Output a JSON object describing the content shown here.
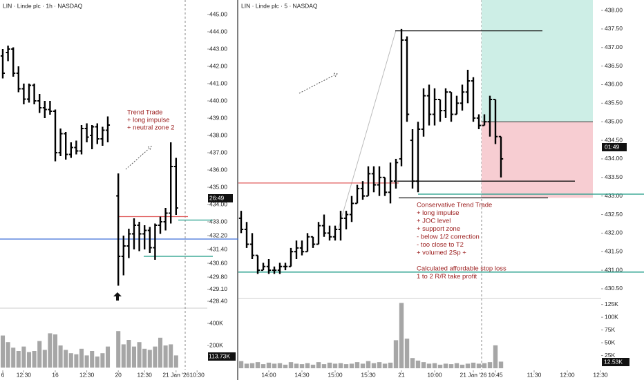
{
  "chart_data": [
    {
      "type": "ohlc",
      "title": "LIN · Linde plc · 1h · NASDAQ",
      "open": [
        442.6,
        442.8,
        443.0,
        441.6,
        440.7,
        440.1,
        440.9,
        440.0,
        439.6,
        439.5,
        439.4,
        437.0,
        438.1,
        436.9,
        437.3,
        437.1,
        438.4,
        438.0,
        438.5,
        437.8,
        438.3,
        null,
        434.5,
        431.0,
        431.6,
        432.3,
        432.8,
        432.3,
        432.5,
        431.5,
        432.8,
        433.0,
        433.5,
        436.2
      ],
      "high": [
        443.0,
        443.2,
        443.1,
        442.0,
        441.0,
        441.0,
        441.0,
        440.4,
        440.0,
        440.0,
        439.5,
        438.4,
        438.2,
        437.6,
        437.7,
        438.6,
        438.7,
        438.6,
        438.7,
        438.5,
        439.1,
        null,
        435.8,
        432.2,
        432.6,
        433.2,
        433.0,
        432.8,
        432.7,
        432.9,
        433.3,
        433.8,
        437.6,
        436.7
      ],
      "low": [
        441.3,
        442.3,
        441.4,
        440.5,
        439.8,
        439.9,
        439.8,
        439.3,
        439.0,
        439.2,
        436.5,
        436.8,
        436.6,
        436.7,
        436.9,
        436.9,
        437.6,
        437.2,
        437.5,
        437.4,
        437.6,
        null,
        429.3,
        429.9,
        430.9,
        431.4,
        431.3,
        431.4,
        431.2,
        430.8,
        432.3,
        432.5,
        432.9,
        433.4
      ],
      "close": [
        441.6,
        443.0,
        441.6,
        440.7,
        440.1,
        440.9,
        440.0,
        439.6,
        439.5,
        439.4,
        437.0,
        438.1,
        436.9,
        437.3,
        437.1,
        438.4,
        437.9,
        438.5,
        437.8,
        438.3,
        438.6,
        null,
        431.0,
        431.6,
        432.3,
        432.8,
        432.3,
        432.5,
        431.5,
        432.8,
        433.0,
        433.5,
        436.2,
        433.8
      ],
      "volume": [
        290000,
        230000,
        180000,
        150000,
        190000,
        140000,
        150000,
        240000,
        160000,
        310000,
        300000,
        200000,
        160000,
        130000,
        120000,
        170000,
        110000,
        150000,
        100000,
        130000,
        190000,
        null,
        330000,
        210000,
        250000,
        190000,
        230000,
        170000,
        160000,
        190000,
        270000,
        200000,
        210000,
        110000
      ],
      "ylim": [
        428.24,
        445.84
      ],
      "yticks": [
        {
          "value": 445,
          "label": "445.00"
        },
        {
          "value": 444,
          "label": "444.00"
        },
        {
          "value": 443,
          "label": "443.00"
        },
        {
          "value": 442,
          "label": "442.00"
        },
        {
          "value": 441,
          "label": "441.00"
        },
        {
          "value": 440,
          "label": "440.00"
        },
        {
          "value": 439,
          "label": "439.00"
        },
        {
          "value": 438,
          "label": "438.00"
        },
        {
          "value": 437,
          "label": "437.00"
        },
        {
          "value": 436,
          "label": "436.00"
        },
        {
          "value": 435,
          "label": "435.00"
        },
        {
          "value": 434,
          "label": "434.00"
        },
        {
          "value": 433,
          "label": "433.00"
        },
        {
          "value": 432.2,
          "label": "432.20"
        },
        {
          "value": 431.4,
          "label": "431.40"
        },
        {
          "value": 430.6,
          "label": "430.60"
        },
        {
          "value": 429.8,
          "label": "429.80"
        },
        {
          "value": 429.1,
          "label": "429.10"
        },
        {
          "value": 428.4,
          "label": "428.40"
        }
      ],
      "vlim": [
        0,
        500000
      ],
      "vticks": [
        {
          "value": 400000,
          "label": "400K"
        },
        {
          "value": 200000,
          "label": "200K"
        }
      ],
      "xticks": [
        {
          "value": 0,
          "label": "6"
        },
        {
          "value": 4,
          "label": "12:30"
        },
        {
          "value": 10,
          "label": "16"
        },
        {
          "value": 16,
          "label": "12:30"
        },
        {
          "value": 22,
          "label": "20"
        },
        {
          "value": 27,
          "label": "12:30"
        },
        {
          "value": 33,
          "label": "21 Jan '26"
        },
        {
          "value": 37,
          "label": "10:30"
        }
      ],
      "levels": [
        {
          "value": 432.0,
          "color": "#3f6fd8"
        },
        {
          "value": 433.3,
          "color": "#e05a5a"
        },
        {
          "value": 433.1,
          "color": "#1a9a85"
        },
        {
          "value": 431.0,
          "color": "#1a9a85"
        }
      ],
      "annotation": [
        "Trend Trade",
        "+ long impulse",
        "+ neutral zone 2"
      ],
      "countdown": "26:49",
      "volume_label": "113.73K"
    },
    {
      "type": "ohlc",
      "title": "LIN · Linde plc · 5 · NASDAQ",
      "open": [
        432.4,
        432.1,
        431.7,
        431.4,
        431.0,
        431.1,
        431.0,
        431.0,
        431.1,
        431.1,
        431.5,
        431.6,
        431.5,
        431.9,
        431.7,
        432.2,
        432.0,
        431.9,
        432.1,
        432.4,
        432.5,
        432.8,
        433.2,
        433.0,
        433.6,
        433.3,
        433.5,
        433.1,
        433.4,
        434.0,
        437.2,
        434.5,
        433.4,
        434.8,
        435.7,
        435.2,
        435.6,
        435.3,
        435.8,
        435.2,
        435.5,
        435.8,
        436.1,
        435.1,
        434.9,
        435.0,
        435.6,
        434.6
      ],
      "high": [
        432.6,
        432.3,
        432.0,
        431.4,
        431.2,
        431.3,
        431.1,
        431.2,
        431.2,
        431.6,
        431.8,
        431.8,
        432.0,
        431.9,
        432.3,
        432.5,
        432.2,
        432.2,
        432.6,
        432.6,
        433.0,
        433.3,
        433.4,
        433.8,
        433.8,
        433.8,
        433.5,
        433.9,
        434.0,
        437.5,
        437.3,
        434.8,
        435.0,
        435.9,
        436.0,
        435.9,
        435.6,
        435.9,
        435.8,
        435.7,
        436.0,
        436.4,
        436.2,
        435.2,
        435.2,
        435.7,
        435.6,
        434.6
      ],
      "low": [
        432.0,
        431.6,
        431.3,
        430.9,
        431.0,
        430.9,
        430.9,
        430.9,
        431.0,
        431.1,
        431.3,
        431.4,
        431.5,
        431.6,
        431.7,
        431.9,
        431.8,
        431.8,
        431.8,
        432.1,
        432.3,
        432.8,
        432.9,
        433.0,
        433.1,
        433.0,
        433.0,
        432.8,
        433.2,
        433.8,
        435.0,
        433.2,
        433.1,
        434.6,
        434.9,
        434.9,
        435.0,
        435.1,
        435.0,
        435.2,
        435.3,
        435.5,
        435.0,
        434.8,
        434.9,
        434.6,
        434.4,
        433.5
      ],
      "close": [
        432.1,
        431.7,
        431.4,
        431.0,
        431.1,
        431.0,
        431.0,
        431.1,
        431.1,
        431.5,
        431.6,
        431.5,
        431.9,
        431.7,
        432.2,
        432.0,
        431.9,
        432.1,
        432.4,
        432.5,
        432.8,
        433.2,
        433.0,
        433.6,
        433.3,
        433.5,
        433.1,
        433.4,
        433.9,
        437.2,
        435.2,
        433.4,
        434.8,
        435.7,
        435.2,
        435.6,
        435.3,
        435.8,
        435.2,
        435.5,
        435.8,
        436.1,
        435.1,
        434.9,
        435.0,
        435.6,
        434.6,
        434.0
      ],
      "volume": [
        14000,
        9000,
        10000,
        12000,
        8000,
        11000,
        9000,
        10000,
        7000,
        12000,
        9000,
        8000,
        10000,
        7000,
        12000,
        8000,
        11000,
        9000,
        10000,
        8000,
        9000,
        12000,
        9000,
        14000,
        10000,
        12000,
        9000,
        11000,
        55000,
        128000,
        58000,
        20000,
        15000,
        12000,
        9000,
        10000,
        7000,
        9000,
        8000,
        10000,
        7000,
        9000,
        11000,
        9000,
        10000,
        12000,
        45000,
        13000
      ],
      "ylim": [
        430.09,
        438.28
      ],
      "yticks": [
        {
          "value": 438,
          "label": "438.00"
        },
        {
          "value": 437.5,
          "label": "437.50"
        },
        {
          "value": 437,
          "label": "437.00"
        },
        {
          "value": 436.5,
          "label": "436.50"
        },
        {
          "value": 436,
          "label": "436.00"
        },
        {
          "value": 435.5,
          "label": "435.50"
        },
        {
          "value": 435,
          "label": "435.00"
        },
        {
          "value": 434.5,
          "label": "434.50"
        },
        {
          "value": 434,
          "label": "434.00"
        },
        {
          "value": 433.5,
          "label": "433.50"
        },
        {
          "value": 433,
          "label": "433.00"
        },
        {
          "value": 432.5,
          "label": "432.50"
        },
        {
          "value": 432,
          "label": "432.00"
        },
        {
          "value": 431.5,
          "label": "431.50"
        },
        {
          "value": 431,
          "label": "431.00"
        },
        {
          "value": 430.5,
          "label": "430.50"
        }
      ],
      "vlim": [
        0,
        130000
      ],
      "vticks": [
        {
          "value": 125000,
          "label": "125K"
        },
        {
          "value": 100000,
          "label": "100K"
        },
        {
          "value": 75000,
          "label": "75K"
        },
        {
          "value": 50000,
          "label": "50K"
        },
        {
          "value": 25000,
          "label": "25K"
        }
      ],
      "xticks": [
        {
          "value": 5,
          "label": "14:00"
        },
        {
          "value": 11,
          "label": "14:30"
        },
        {
          "value": 17,
          "label": "15:00"
        },
        {
          "value": 23,
          "label": "15:30"
        },
        {
          "value": 29,
          "label": "21"
        },
        {
          "value": 35,
          "label": "10:00"
        },
        {
          "value": 42,
          "label": "21 Jan '26"
        },
        {
          "value": 46,
          "label": "10:45"
        },
        {
          "value": 53,
          "label": "11:30"
        },
        {
          "value": 59,
          "label": "12:00"
        },
        {
          "value": 65,
          "label": "12:30"
        }
      ],
      "levels": [
        {
          "value": 433.35,
          "color": "#e05a5a"
        },
        {
          "value": 433.05,
          "color": "#1a9a85"
        },
        {
          "value": 430.95,
          "color": "#1a9a85"
        },
        {
          "value": 437.45,
          "color": "#111111"
        },
        {
          "value": 433.4,
          "color": "#111111"
        },
        {
          "value": 432.95,
          "color": "#111111"
        }
      ],
      "position": {
        "entry": 435.0,
        "stop": 432.95
      },
      "annotation": [
        "Conservative Trend Trade",
        "+ long impulse",
        "+ JOC level",
        "+ support zone",
        "- below 1/2 correction",
        "- too close to T2",
        "+ volumed 2Sp +",
        "Calculated affordable stop loss",
        "1 to 2 R/R take profit"
      ],
      "countdown": "01:49",
      "volume_label": "12.53K"
    }
  ]
}
